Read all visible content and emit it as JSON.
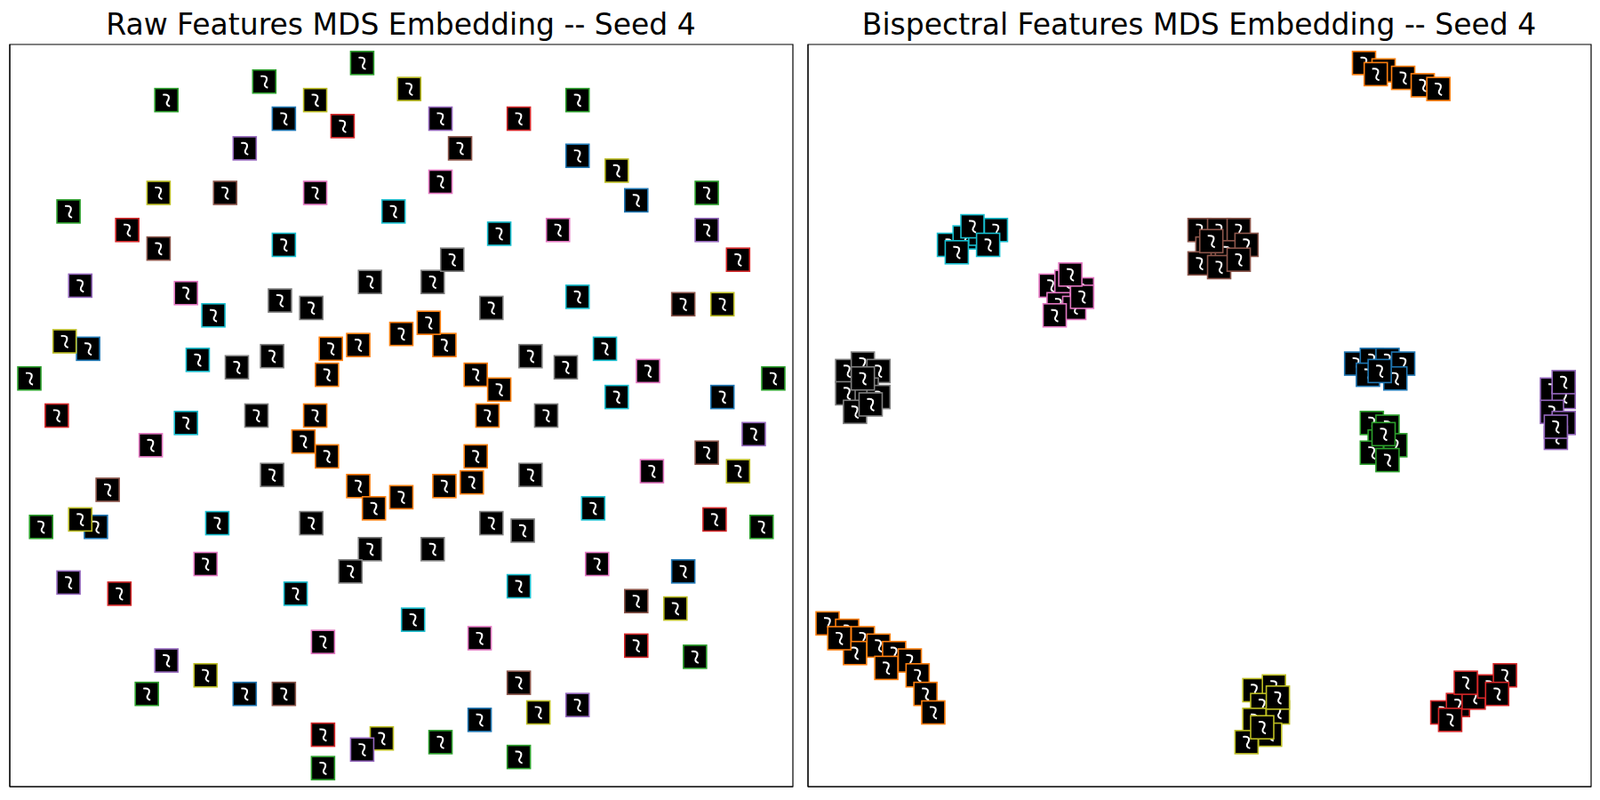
{
  "chart_data": [
    {
      "type": "scatter",
      "title": "Raw Features MDS Embedding -- Seed 4",
      "xlim": [
        -1,
        1
      ],
      "ylim": [
        -1,
        1
      ],
      "tick_labels": false,
      "grid": false,
      "marker": "square",
      "series": [
        {
          "color": "#ff7f0e",
          "x": [
            0.22,
            0.19,
            0.11,
            0,
            -0.11,
            -0.19,
            -0.22,
            -0.19,
            -0.11,
            0,
            0.11,
            0.19,
            0.25,
            0.07,
            -0.18,
            -0.25,
            -0.07,
            0.18
          ],
          "y": [
            0,
            0.11,
            0.19,
            0.22,
            0.19,
            0.11,
            0,
            -0.11,
            -0.19,
            -0.22,
            -0.19,
            -0.11,
            0.07,
            0.25,
            0.18,
            -0.07,
            -0.25,
            -0.18
          ]
        },
        {
          "color": "#7f7f7f",
          "x": [
            0.37,
            0.33,
            0.23,
            0.08,
            -0.08,
            -0.23,
            -0.33,
            -0.37,
            -0.33,
            -0.23,
            -0.08,
            0.08,
            0.23,
            0.33,
            0.42,
            0.13,
            -0.42,
            -0.13,
            0.31,
            -0.31
          ],
          "y": [
            0,
            0.16,
            0.29,
            0.36,
            0.36,
            0.29,
            0.16,
            0,
            -0.16,
            -0.29,
            -0.36,
            -0.36,
            -0.29,
            -0.16,
            0.13,
            0.42,
            0.13,
            -0.42,
            -0.31,
            0.31
          ]
        },
        {
          "color": "#17becf",
          "x": [
            0.55,
            0.45,
            0.25,
            -0.02,
            -0.3,
            -0.48,
            -0.55,
            -0.47,
            -0.27,
            0.03,
            0.3,
            0.49,
            0.52,
            -0.52
          ],
          "y": [
            0.05,
            0.32,
            0.49,
            0.55,
            0.46,
            0.27,
            -0.02,
            -0.29,
            -0.48,
            -0.55,
            -0.46,
            -0.25,
            0.18,
            0.15
          ]
        },
        {
          "color": "#e377c2",
          "x": [
            0.63,
            0.4,
            0.1,
            -0.22,
            -0.55,
            -0.64,
            -0.5,
            -0.2,
            0.2,
            0.5,
            0.64
          ],
          "y": [
            0.12,
            0.5,
            0.63,
            0.6,
            0.33,
            -0.08,
            -0.4,
            -0.61,
            -0.6,
            -0.4,
            -0.15
          ]
        },
        {
          "color": "#8c564b",
          "x": [
            0.15,
            -0.45,
            0.72,
            -0.75,
            0.3,
            -0.3,
            0.6,
            -0.62,
            0.78
          ],
          "y": [
            0.72,
            0.6,
            0.3,
            -0.2,
            -0.72,
            -0.75,
            -0.5,
            0.45,
            -0.1
          ]
        },
        {
          "color": "#1f77b4",
          "x": [
            -0.3,
            0.45,
            0.82,
            -0.8,
            -0.78,
            -0.4,
            0.2,
            0.72,
            0.6
          ],
          "y": [
            0.8,
            0.7,
            0.05,
            0.18,
            -0.3,
            -0.75,
            -0.82,
            -0.42,
            0.58
          ]
        },
        {
          "color": "#bcbd22",
          "x": [
            -0.22,
            0.02,
            0.55,
            0.82,
            0.86,
            0.7,
            0.35,
            -0.05,
            -0.5,
            -0.82,
            -0.86,
            -0.62
          ],
          "y": [
            0.85,
            0.88,
            0.66,
            0.3,
            -0.15,
            -0.52,
            -0.8,
            -0.87,
            -0.7,
            -0.28,
            0.2,
            0.6
          ]
        },
        {
          "color": "#d62728",
          "x": [
            -0.15,
            0.3,
            0.8,
            0.6,
            -0.2,
            -0.88,
            -0.72,
            -0.7,
            0.86
          ],
          "y": [
            0.78,
            0.8,
            -0.28,
            -0.62,
            -0.86,
            0,
            -0.48,
            0.5,
            0.42
          ]
        },
        {
          "color": "#9467bd",
          "x": [
            0.1,
            0.78,
            0.9,
            0.45,
            -0.1,
            -0.6,
            -0.85,
            -0.82,
            -0.4
          ],
          "y": [
            0.8,
            0.5,
            -0.05,
            -0.78,
            -0.9,
            -0.66,
            -0.45,
            0.35,
            0.72
          ]
        },
        {
          "color": "#2ca02c",
          "x": [
            -0.6,
            -0.1,
            0.45,
            0.78,
            0.95,
            0.92,
            0.75,
            0.3,
            -0.2,
            -0.65,
            -0.92,
            -0.95,
            -0.85,
            -0.35,
            0.1
          ],
          "y": [
            0.85,
            0.95,
            0.85,
            0.6,
            0.1,
            -0.3,
            -0.65,
            -0.92,
            -0.95,
            -0.75,
            -0.3,
            0.1,
            0.55,
            0.9,
            -0.88
          ]
        }
      ]
    },
    {
      "type": "scatter",
      "title": "Bispectral Features MDS Embedding -- Seed 4",
      "xlim": [
        -1,
        1
      ],
      "ylim": [
        -1,
        1
      ],
      "tick_labels": false,
      "grid": false,
      "marker": "square",
      "series": [
        {
          "color": "#ff7f0e",
          "x": [
            0.42,
            0.47,
            0.52,
            0.57,
            0.61,
            0.45,
            -0.95,
            -0.9,
            -0.86,
            -0.82,
            -0.78,
            -0.74,
            -0.72,
            -0.7,
            -0.68,
            -0.88,
            -0.8,
            -0.92
          ],
          "y": [
            0.95,
            0.93,
            0.91,
            0.89,
            0.88,
            0.92,
            -0.56,
            -0.58,
            -0.6,
            -0.62,
            -0.64,
            -0.66,
            -0.7,
            -0.75,
            -0.8,
            -0.64,
            -0.68,
            -0.6
          ]
        },
        {
          "color": "#17becf",
          "x": [
            -0.64,
            -0.6,
            -0.56,
            -0.52,
            -0.58,
            -0.62,
            -0.54
          ],
          "y": [
            0.46,
            0.48,
            0.49,
            0.5,
            0.51,
            0.44,
            0.46
          ]
        },
        {
          "color": "#e377c2",
          "x": [
            -0.38,
            -0.34,
            -0.3,
            -0.36,
            -0.32,
            -0.3,
            -0.37,
            -0.33
          ],
          "y": [
            0.35,
            0.36,
            0.34,
            0.3,
            0.29,
            0.32,
            0.27,
            0.38
          ]
        },
        {
          "color": "#8c564b",
          "x": [
            0,
            0.05,
            0.1,
            0.02,
            0.07,
            0.12,
            0,
            0.05,
            0.1,
            0.03
          ],
          "y": [
            0.5,
            0.5,
            0.5,
            0.45,
            0.44,
            0.46,
            0.41,
            0.4,
            0.42,
            0.47
          ]
        },
        {
          "color": "#7f7f7f",
          "x": [
            -0.9,
            -0.86,
            -0.82,
            -0.9,
            -0.85,
            -0.82,
            -0.88,
            -0.84,
            -0.86
          ],
          "y": [
            0.12,
            0.14,
            0.12,
            0.06,
            0.07,
            0.05,
            0.01,
            0.03,
            0.1
          ]
        },
        {
          "color": "#1f77b4",
          "x": [
            0.4,
            0.44,
            0.48,
            0.52,
            0.43,
            0.5,
            0.46
          ],
          "y": [
            0.14,
            0.15,
            0.15,
            0.14,
            0.11,
            0.1,
            0.12
          ]
        },
        {
          "color": "#2ca02c",
          "x": [
            0.44,
            0.48,
            0.46,
            0.5,
            0.44,
            0.48,
            0.47
          ],
          "y": [
            -0.02,
            -0.03,
            -0.07,
            -0.08,
            -0.1,
            -0.12,
            -0.05
          ]
        },
        {
          "color": "#9467bd",
          "x": [
            0.9,
            0.93,
            0.9,
            0.93,
            0.91,
            0.93,
            0.91
          ],
          "y": [
            0.07,
            0.05,
            0.01,
            -0.02,
            -0.06,
            0.09,
            -0.03
          ]
        },
        {
          "color": "#bcbd22",
          "x": [
            0.14,
            0.19,
            0.16,
            0.2,
            0.14,
            0.18,
            0.12,
            0.2,
            0.16
          ],
          "y": [
            -0.74,
            -0.73,
            -0.78,
            -0.8,
            -0.82,
            -0.86,
            -0.88,
            -0.76,
            -0.84
          ]
        },
        {
          "color": "#d62728",
          "x": [
            0.62,
            0.66,
            0.7,
            0.74,
            0.78,
            0.68,
            0.64,
            0.76
          ],
          "y": [
            -0.8,
            -0.78,
            -0.76,
            -0.73,
            -0.7,
            -0.72,
            -0.82,
            -0.75
          ]
        }
      ]
    }
  ]
}
